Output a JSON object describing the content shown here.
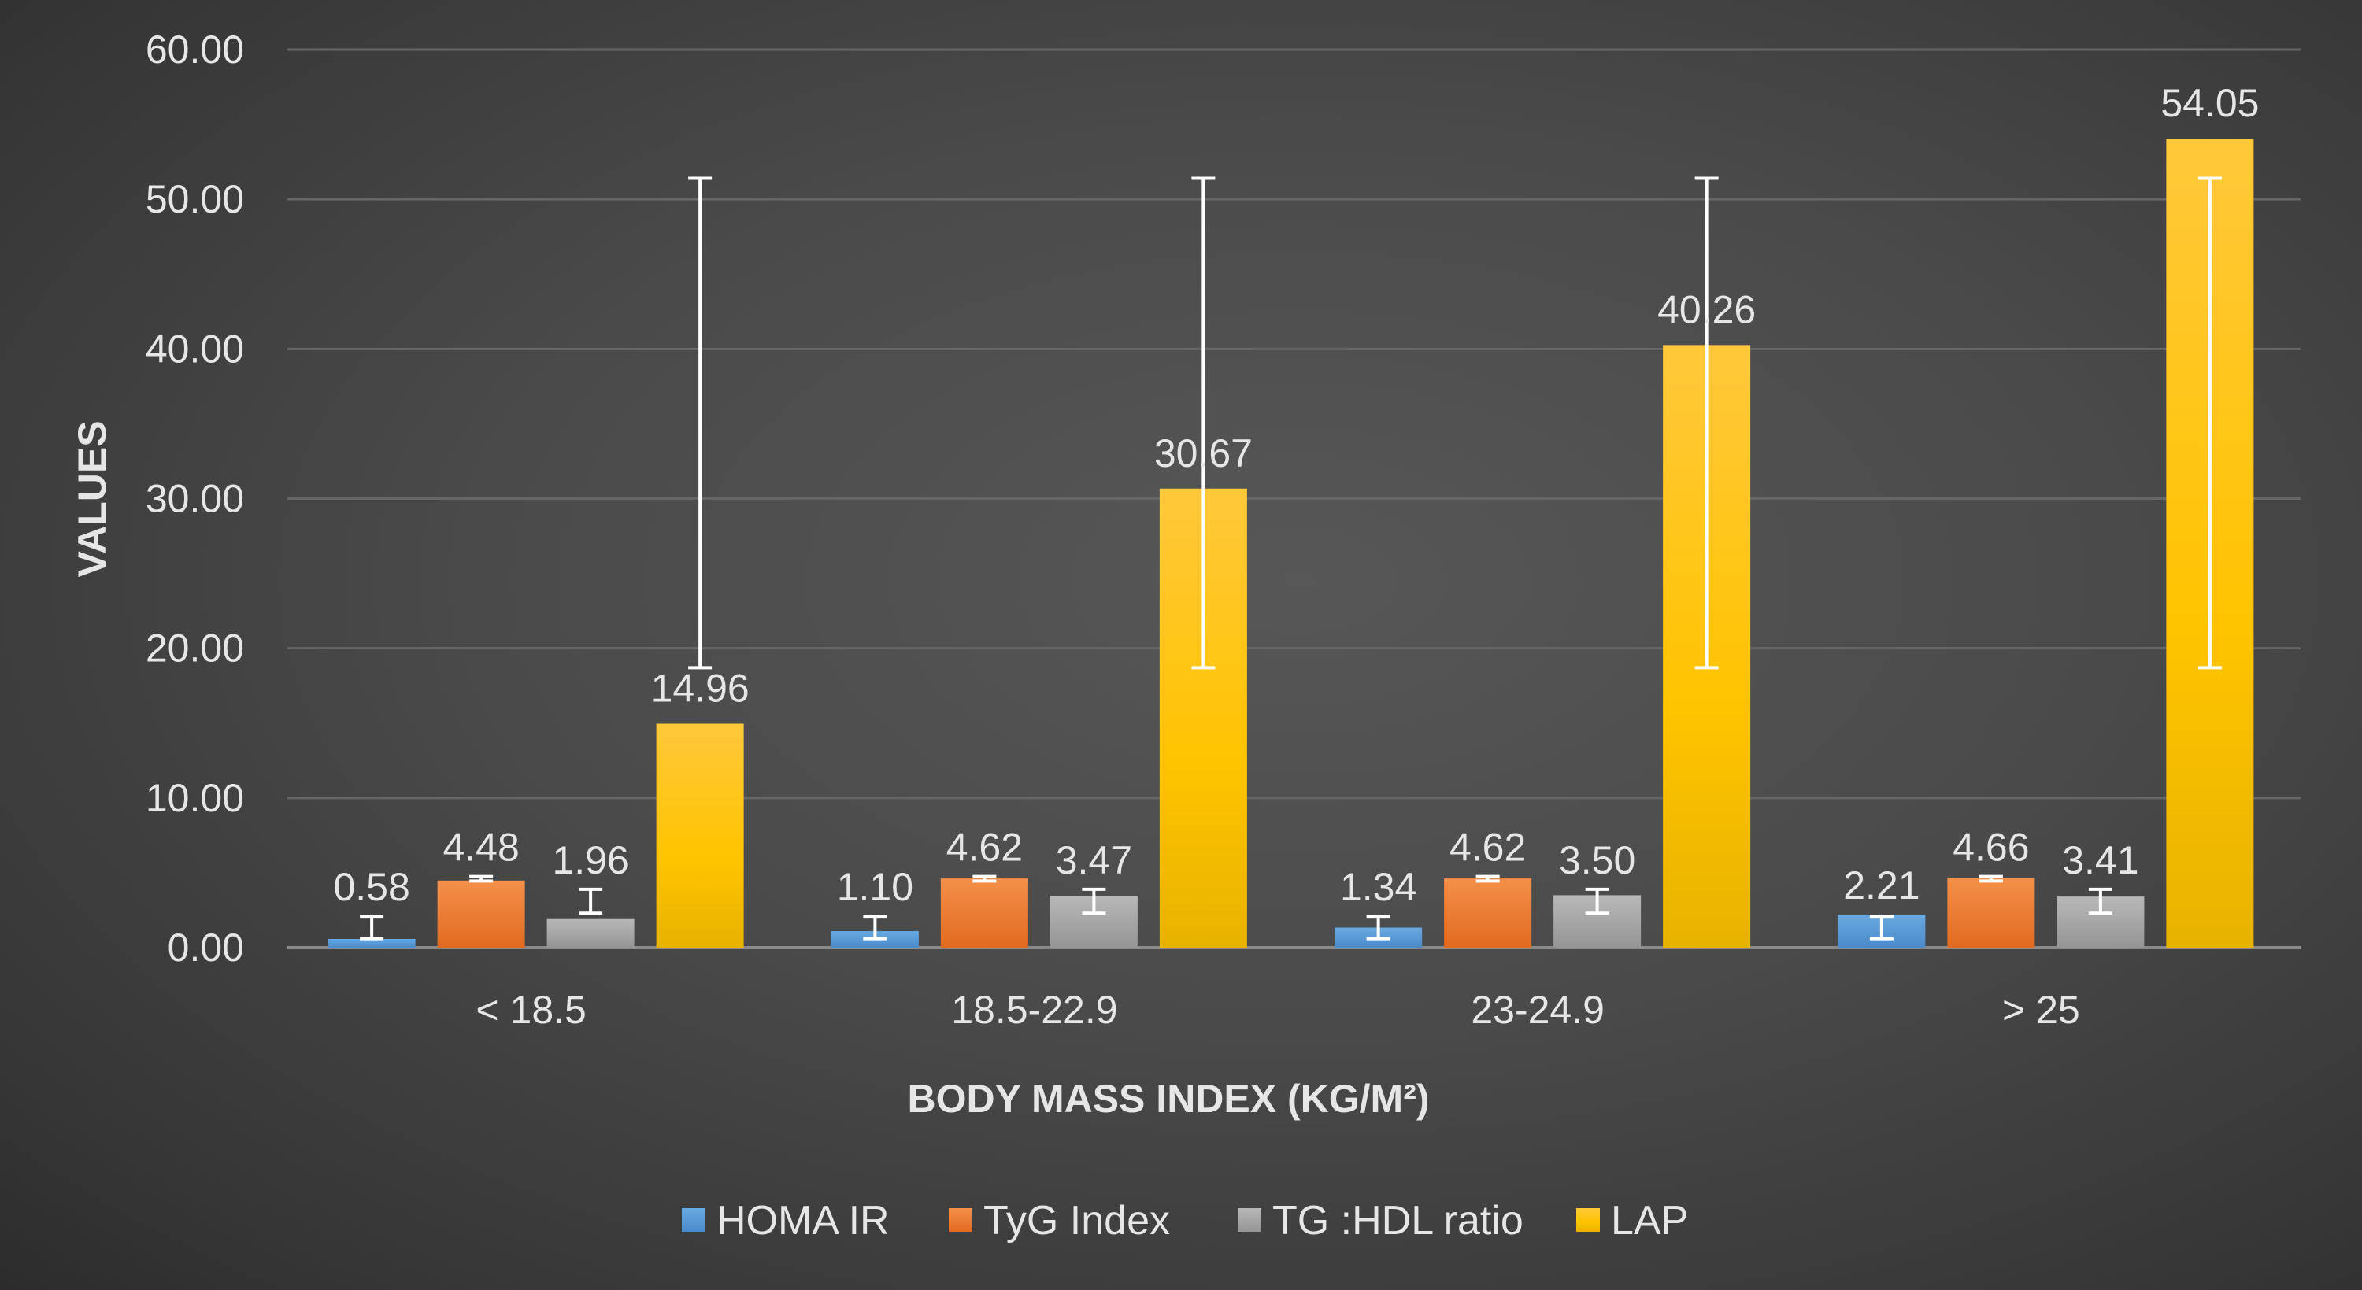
{
  "chart_data": {
    "type": "bar",
    "xlabel": "BODY MASS INDEX (KG/M²)",
    "ylabel": "VALUES",
    "ylim": [
      0,
      60
    ],
    "yticks": [
      "0.00",
      "10.00",
      "20.00",
      "30.00",
      "40.00",
      "50.00",
      "60.00"
    ],
    "grid": true,
    "legend_position": "bottom",
    "categories": [
      "< 18.5",
      "18.5-22.9",
      "23-24.9",
      "> 25"
    ],
    "series": [
      {
        "name": "HOMA IR",
        "color": "#5b9bd5",
        "values": [
          0.58,
          1.1,
          1.34,
          2.21
        ],
        "labels": [
          "0.58",
          "1.10",
          "1.34",
          "2.21"
        ],
        "error_range": [
          [
            0.6,
            2.1
          ],
          [
            0.6,
            2.1
          ],
          [
            0.6,
            2.1
          ],
          [
            0.6,
            2.1
          ]
        ]
      },
      {
        "name": "TyG Index",
        "color": "#ed7d31",
        "values": [
          4.48,
          4.62,
          4.62,
          4.66
        ],
        "labels": [
          "4.48",
          "4.62",
          "4.62",
          "4.66"
        ],
        "error_range": [
          [
            4.45,
            4.75
          ],
          [
            4.45,
            4.75
          ],
          [
            4.45,
            4.75
          ],
          [
            4.45,
            4.75
          ]
        ]
      },
      {
        "name": "TG :HDL ratio",
        "color": "#a5a5a5",
        "values": [
          1.96,
          3.47,
          3.5,
          3.41
        ],
        "labels": [
          "1.96",
          "3.47",
          "3.50",
          "3.41"
        ],
        "error_range": [
          [
            2.3,
            3.9
          ],
          [
            2.3,
            3.9
          ],
          [
            2.3,
            3.9
          ],
          [
            2.3,
            3.9
          ]
        ]
      },
      {
        "name": "LAP",
        "color": "#ffc000",
        "values": [
          14.96,
          30.67,
          40.26,
          54.05
        ],
        "labels": [
          "14.96",
          "30.67",
          "40.26",
          "54.05"
        ],
        "error_range": [
          [
            18.7,
            51.4
          ],
          [
            18.7,
            51.4
          ],
          [
            18.7,
            51.4
          ],
          [
            18.7,
            51.4
          ]
        ]
      }
    ]
  }
}
